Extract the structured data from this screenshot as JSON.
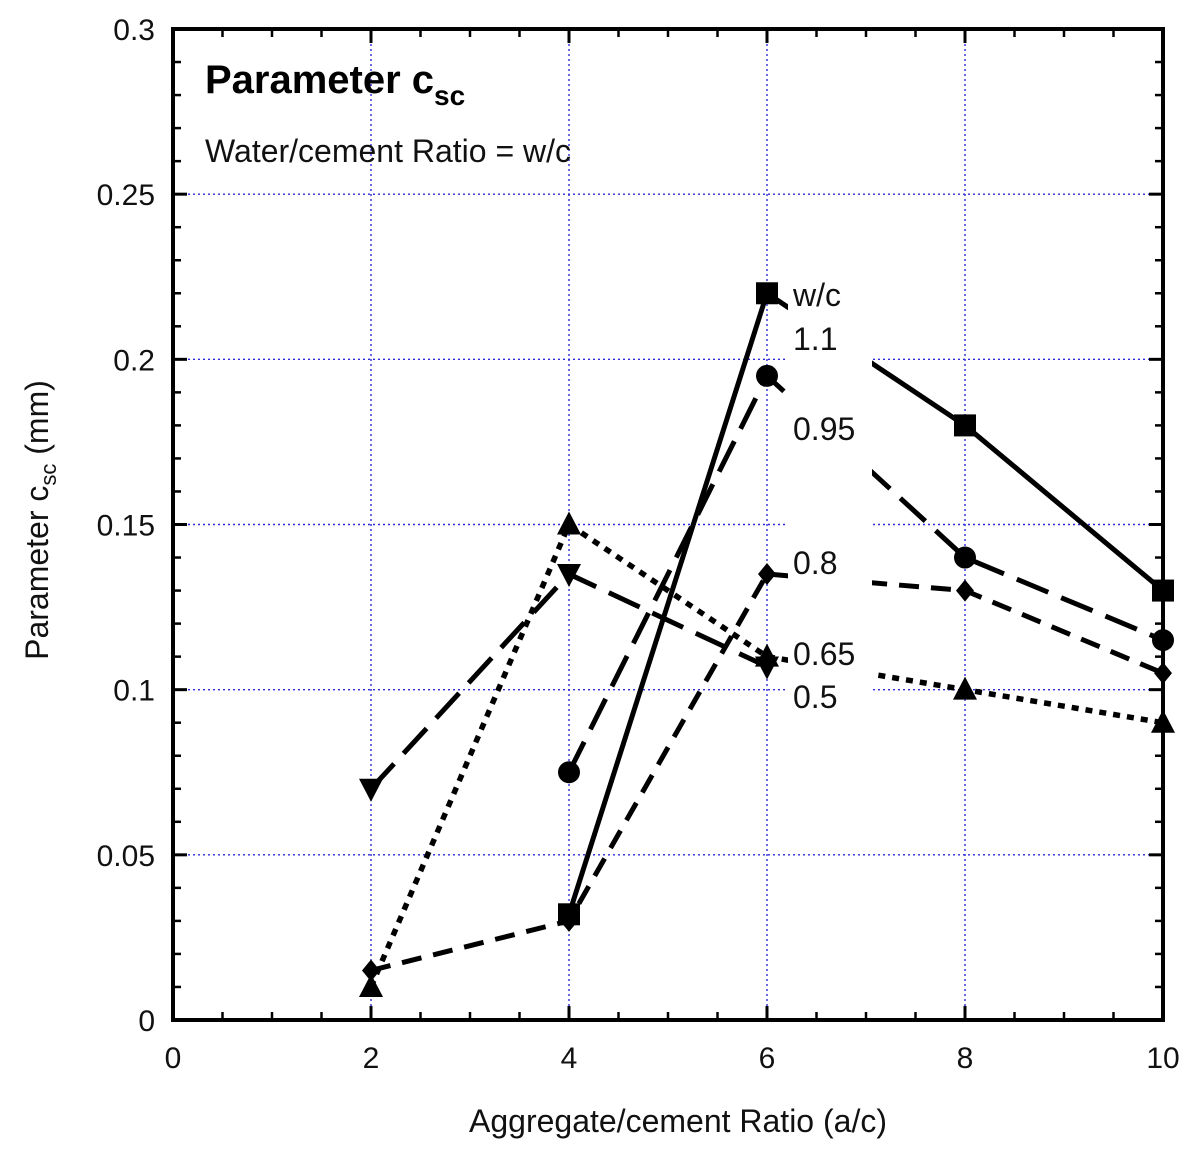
{
  "chart_data": {
    "type": "line",
    "title_main": "Parameter c",
    "title_sub": "sc",
    "subtitle": "Water/cement Ratio = w/c",
    "xlabel": "Aggregate/cement Ratio (a/c)",
    "ylabel_main": "Parameter c",
    "ylabel_sub": "sc",
    "ylabel_unit": " (mm)",
    "xlim": [
      0,
      10
    ],
    "ylim": [
      0,
      0.3
    ],
    "x_ticks": [
      "0",
      "2",
      "4",
      "6",
      "8",
      "10"
    ],
    "y_ticks": [
      "0",
      "0.05",
      "0.1",
      "0.15",
      "0.2",
      "0.25",
      "0.3"
    ],
    "grid": true,
    "legend_title": "w/c",
    "series": [
      {
        "name": "1.1",
        "marker": "square",
        "dash": "solid",
        "x": [
          4,
          6,
          8,
          10
        ],
        "y": [
          0.032,
          0.22,
          0.18,
          0.13
        ]
      },
      {
        "name": "0.95",
        "marker": "circle",
        "dash": "long-dash",
        "x": [
          4,
          6,
          8,
          10
        ],
        "y": [
          0.075,
          0.195,
          0.14,
          0.115
        ]
      },
      {
        "name": "0.8",
        "marker": "diamond",
        "dash": "dash",
        "x": [
          2,
          4,
          6,
          8,
          10
        ],
        "y": [
          0.015,
          0.03,
          0.135,
          0.13,
          0.105
        ]
      },
      {
        "name": "0.65",
        "marker": "triangle-up",
        "dash": "dot",
        "x": [
          2,
          4,
          6,
          8,
          10
        ],
        "y": [
          0.01,
          0.15,
          0.11,
          0.1,
          0.09
        ]
      },
      {
        "name": "0.5",
        "marker": "triangle-down",
        "dash": "long-dash",
        "x": [
          2,
          4,
          6
        ],
        "y": [
          0.07,
          0.135,
          0.107
        ]
      }
    ]
  }
}
